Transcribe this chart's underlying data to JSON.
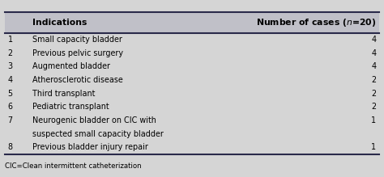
{
  "header_col1": "Indications",
  "header_col2_pre": "Number of cases (",
  "header_col2_italic": "n",
  "header_col2_post": "=20)",
  "rows": [
    {
      "num": "1",
      "indication": "Small capacity bladder",
      "cases": "4"
    },
    {
      "num": "2",
      "indication": "Previous pelvic surgery",
      "cases": "4"
    },
    {
      "num": "3",
      "indication": "Augmented bladder",
      "cases": "4"
    },
    {
      "num": "4",
      "indication": "Atherosclerotic disease",
      "cases": "2"
    },
    {
      "num": "5",
      "indication": "Third transplant",
      "cases": "2"
    },
    {
      "num": "6",
      "indication": "Pediatric transplant",
      "cases": "2"
    },
    {
      "num": "7",
      "indication_lines": [
        "Neurogenic bladder on CIC with",
        "suspected small capacity bladder"
      ],
      "cases": "1"
    },
    {
      "num": "8",
      "indication": "Previous bladder injury repair",
      "cases": "1"
    }
  ],
  "footnote": "CIC=Clean intermittent catheterization",
  "bg_color": "#d5d5d5",
  "header_bg": "#c0c0c8",
  "text_color": "#000000",
  "border_color": "#2a2a4a",
  "fig_width": 4.74,
  "fig_height": 2.19,
  "dpi": 100
}
